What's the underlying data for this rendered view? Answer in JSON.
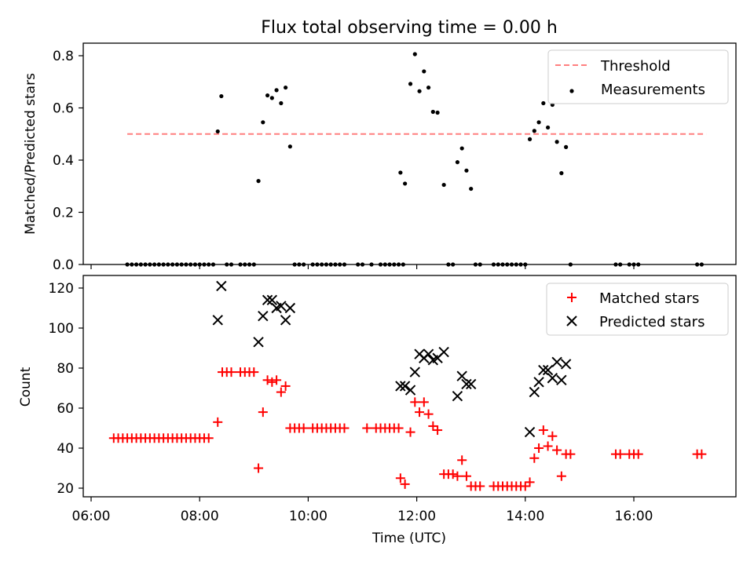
{
  "chart_data": [
    {
      "type": "scatter",
      "title": "Flux total observing time = 0.00 h",
      "xlabel": "",
      "ylabel": "Matched/Predicted stars",
      "ylim": [
        0,
        0.85
      ],
      "yticks": [
        "0.0",
        "0.2",
        "0.4",
        "0.6",
        "0.8"
      ],
      "grid": false,
      "legend_position": "top-right",
      "threshold": {
        "name": "Threshold",
        "y": 0.5,
        "x_start": "06:40",
        "x_end": "17:20",
        "color": "#ff7f7f",
        "style": "dashed"
      },
      "series": [
        {
          "name": "Measurements",
          "color": "#000000",
          "points": [
            [
              "06:40",
              0
            ],
            [
              "06:45",
              0
            ],
            [
              "06:50",
              0
            ],
            [
              "06:55",
              0
            ],
            [
              "07:00",
              0
            ],
            [
              "07:05",
              0
            ],
            [
              "07:10",
              0
            ],
            [
              "07:15",
              0
            ],
            [
              "07:20",
              0
            ],
            [
              "07:25",
              0
            ],
            [
              "07:30",
              0
            ],
            [
              "07:35",
              0
            ],
            [
              "07:40",
              0
            ],
            [
              "07:45",
              0
            ],
            [
              "07:50",
              0
            ],
            [
              "07:55",
              0
            ],
            [
              "08:00",
              0
            ],
            [
              "08:05",
              0
            ],
            [
              "08:10",
              0
            ],
            [
              "08:15",
              0
            ],
            [
              "08:20",
              0.51
            ],
            [
              "08:24",
              0.645
            ],
            [
              "08:30",
              0
            ],
            [
              "08:35",
              0
            ],
            [
              "08:45",
              0
            ],
            [
              "08:50",
              0
            ],
            [
              "08:55",
              0
            ],
            [
              "09:00",
              0
            ],
            [
              "09:05",
              0.32
            ],
            [
              "09:10",
              0.545
            ],
            [
              "09:15",
              0.648
            ],
            [
              "09:20",
              0.638
            ],
            [
              "09:25",
              0.668
            ],
            [
              "09:30",
              0.618
            ],
            [
              "09:35",
              0.678
            ],
            [
              "09:40",
              0.452
            ],
            [
              "09:45",
              0
            ],
            [
              "09:50",
              0
            ],
            [
              "09:55",
              0
            ],
            [
              "10:05",
              0
            ],
            [
              "10:10",
              0
            ],
            [
              "10:15",
              0
            ],
            [
              "10:20",
              0
            ],
            [
              "10:25",
              0
            ],
            [
              "10:30",
              0
            ],
            [
              "10:35",
              0
            ],
            [
              "10:40",
              0
            ],
            [
              "10:55",
              0
            ],
            [
              "11:00",
              0
            ],
            [
              "11:10",
              0
            ],
            [
              "11:20",
              0
            ],
            [
              "11:25",
              0
            ],
            [
              "11:30",
              0
            ],
            [
              "11:35",
              0
            ],
            [
              "11:40",
              0
            ],
            [
              "11:45",
              0
            ],
            [
              "11:42",
              0.352
            ],
            [
              "11:47",
              0.31
            ],
            [
              "11:53",
              0.692
            ],
            [
              "11:58",
              0.806
            ],
            [
              "12:03",
              0.664
            ],
            [
              "12:08",
              0.74
            ],
            [
              "12:13",
              0.678
            ],
            [
              "12:18",
              0.585
            ],
            [
              "12:23",
              0.582
            ],
            [
              "12:30",
              0.305
            ],
            [
              "12:35",
              0
            ],
            [
              "12:40",
              0
            ],
            [
              "12:45",
              0.392
            ],
            [
              "12:50",
              0.445
            ],
            [
              "12:55",
              0.36
            ],
            [
              "13:00",
              0.29
            ],
            [
              "13:05",
              0
            ],
            [
              "13:10",
              0
            ],
            [
              "13:25",
              0
            ],
            [
              "13:30",
              0
            ],
            [
              "13:35",
              0
            ],
            [
              "13:40",
              0
            ],
            [
              "13:45",
              0
            ],
            [
              "13:50",
              0
            ],
            [
              "13:55",
              0
            ],
            [
              "14:00",
              0
            ],
            [
              "14:05",
              0.48
            ],
            [
              "14:10",
              0.512
            ],
            [
              "14:15",
              0.545
            ],
            [
              "14:20",
              0.618
            ],
            [
              "14:25",
              0.525
            ],
            [
              "14:30",
              0.612
            ],
            [
              "14:35",
              0.47
            ],
            [
              "14:40",
              0.35
            ],
            [
              "14:45",
              0.45
            ],
            [
              "14:50",
              0
            ],
            [
              "15:40",
              0
            ],
            [
              "15:45",
              0
            ],
            [
              "15:55",
              0
            ],
            [
              "16:00",
              0
            ],
            [
              "16:05",
              0
            ],
            [
              "17:10",
              0
            ],
            [
              "17:15",
              0
            ]
          ]
        }
      ]
    },
    {
      "type": "scatter",
      "xlabel": "Time (UTC)",
      "ylabel": "Count",
      "ylim": [
        16,
        126
      ],
      "xticks": [
        "06:00",
        "08:00",
        "10:00",
        "12:00",
        "14:00",
        "16:00"
      ],
      "yticks": [
        "20",
        "40",
        "60",
        "80",
        "100",
        "120"
      ],
      "grid": false,
      "legend_position": "top-right",
      "series": [
        {
          "name": "Matched stars",
          "marker": "plus",
          "color": "#ff0000",
          "points": [
            [
              "06:25",
              45
            ],
            [
              "06:30",
              45
            ],
            [
              "06:35",
              45
            ],
            [
              "06:40",
              45
            ],
            [
              "06:45",
              45
            ],
            [
              "06:50",
              45
            ],
            [
              "06:55",
              45
            ],
            [
              "07:00",
              45
            ],
            [
              "07:05",
              45
            ],
            [
              "07:10",
              45
            ],
            [
              "07:15",
              45
            ],
            [
              "07:20",
              45
            ],
            [
              "07:25",
              45
            ],
            [
              "07:30",
              45
            ],
            [
              "07:35",
              45
            ],
            [
              "07:40",
              45
            ],
            [
              "07:45",
              45
            ],
            [
              "07:50",
              45
            ],
            [
              "07:55",
              45
            ],
            [
              "08:00",
              45
            ],
            [
              "08:05",
              45
            ],
            [
              "08:10",
              45
            ],
            [
              "08:20",
              53
            ],
            [
              "08:25",
              78
            ],
            [
              "08:30",
              78
            ],
            [
              "08:35",
              78
            ],
            [
              "08:45",
              78
            ],
            [
              "08:50",
              78
            ],
            [
              "08:55",
              78
            ],
            [
              "09:00",
              78
            ],
            [
              "09:05",
              30
            ],
            [
              "09:10",
              58
            ],
            [
              "09:15",
              74
            ],
            [
              "09:20",
              73
            ],
            [
              "09:25",
              74
            ],
            [
              "09:30",
              68
            ],
            [
              "09:35",
              71
            ],
            [
              "09:40",
              50
            ],
            [
              "09:45",
              50
            ],
            [
              "09:50",
              50
            ],
            [
              "09:55",
              50
            ],
            [
              "10:05",
              50
            ],
            [
              "10:10",
              50
            ],
            [
              "10:15",
              50
            ],
            [
              "10:20",
              50
            ],
            [
              "10:25",
              50
            ],
            [
              "10:30",
              50
            ],
            [
              "10:35",
              50
            ],
            [
              "10:40",
              50
            ],
            [
              "11:05",
              50
            ],
            [
              "11:15",
              50
            ],
            [
              "11:20",
              50
            ],
            [
              "11:25",
              50
            ],
            [
              "11:30",
              50
            ],
            [
              "11:35",
              50
            ],
            [
              "11:40",
              50
            ],
            [
              "11:42",
              25
            ],
            [
              "11:47",
              22
            ],
            [
              "11:53",
              48
            ],
            [
              "11:58",
              63
            ],
            [
              "12:03",
              58
            ],
            [
              "12:08",
              63
            ],
            [
              "12:13",
              57
            ],
            [
              "12:18",
              51
            ],
            [
              "12:23",
              49
            ],
            [
              "12:30",
              27
            ],
            [
              "12:35",
              27
            ],
            [
              "12:40",
              27
            ],
            [
              "12:45",
              26
            ],
            [
              "12:50",
              34
            ],
            [
              "12:55",
              26
            ],
            [
              "13:00",
              21
            ],
            [
              "13:05",
              21
            ],
            [
              "13:10",
              21
            ],
            [
              "13:25",
              21
            ],
            [
              "13:30",
              21
            ],
            [
              "13:35",
              21
            ],
            [
              "13:40",
              21
            ],
            [
              "13:45",
              21
            ],
            [
              "13:50",
              21
            ],
            [
              "13:55",
              21
            ],
            [
              "14:00",
              21
            ],
            [
              "14:05",
              23
            ],
            [
              "14:10",
              35
            ],
            [
              "14:15",
              40
            ],
            [
              "14:20",
              49
            ],
            [
              "14:25",
              41
            ],
            [
              "14:30",
              46
            ],
            [
              "14:35",
              39
            ],
            [
              "14:40",
              26
            ],
            [
              "14:45",
              37
            ],
            [
              "14:50",
              37
            ],
            [
              "15:40",
              37
            ],
            [
              "15:45",
              37
            ],
            [
              "15:55",
              37
            ],
            [
              "16:00",
              37
            ],
            [
              "16:05",
              37
            ],
            [
              "17:10",
              37
            ],
            [
              "17:15",
              37
            ]
          ]
        },
        {
          "name": "Predicted stars",
          "marker": "x",
          "color": "#000000",
          "points": [
            [
              "08:20",
              104
            ],
            [
              "08:24",
              121
            ],
            [
              "09:05",
              93
            ],
            [
              "09:10",
              106
            ],
            [
              "09:15",
              114
            ],
            [
              "09:20",
              114
            ],
            [
              "09:25",
              110
            ],
            [
              "09:30",
              111
            ],
            [
              "09:35",
              104
            ],
            [
              "09:40",
              110
            ],
            [
              "11:42",
              71
            ],
            [
              "11:47",
              71
            ],
            [
              "11:53",
              69
            ],
            [
              "11:58",
              78
            ],
            [
              "12:03",
              87
            ],
            [
              "12:08",
              85
            ],
            [
              "12:13",
              87
            ],
            [
              "12:18",
              84
            ],
            [
              "12:23",
              85
            ],
            [
              "12:30",
              88
            ],
            [
              "12:45",
              66
            ],
            [
              "12:50",
              76
            ],
            [
              "12:55",
              72
            ],
            [
              "13:00",
              72
            ],
            [
              "14:05",
              48
            ],
            [
              "14:10",
              68
            ],
            [
              "14:15",
              73
            ],
            [
              "14:20",
              79
            ],
            [
              "14:25",
              79
            ],
            [
              "14:30",
              75
            ],
            [
              "14:35",
              83
            ],
            [
              "14:40",
              74
            ],
            [
              "14:45",
              82
            ]
          ]
        }
      ]
    }
  ]
}
